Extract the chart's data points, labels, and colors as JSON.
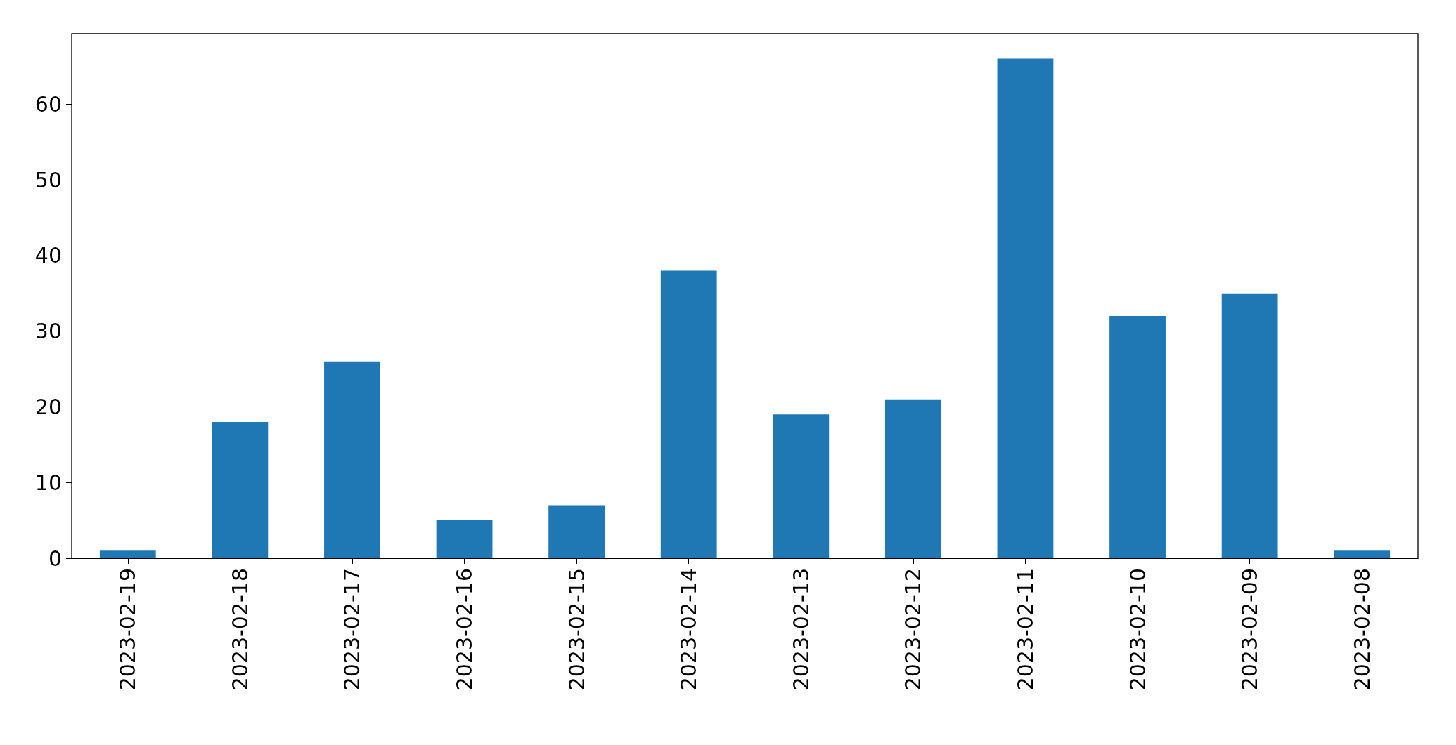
{
  "chart_data": {
    "type": "bar",
    "categories": [
      "2023-02-19",
      "2023-02-18",
      "2023-02-17",
      "2023-02-16",
      "2023-02-15",
      "2023-02-14",
      "2023-02-13",
      "2023-02-12",
      "2023-02-11",
      "2023-02-10",
      "2023-02-09",
      "2023-02-08"
    ],
    "values": [
      1,
      18,
      26,
      5,
      7,
      38,
      19,
      21,
      66,
      32,
      35,
      1
    ],
    "color": "#1f77b4",
    "ylim": [
      0,
      69.3
    ],
    "yticks": [
      0,
      10,
      20,
      30,
      40,
      50,
      60
    ],
    "grid": false
  }
}
